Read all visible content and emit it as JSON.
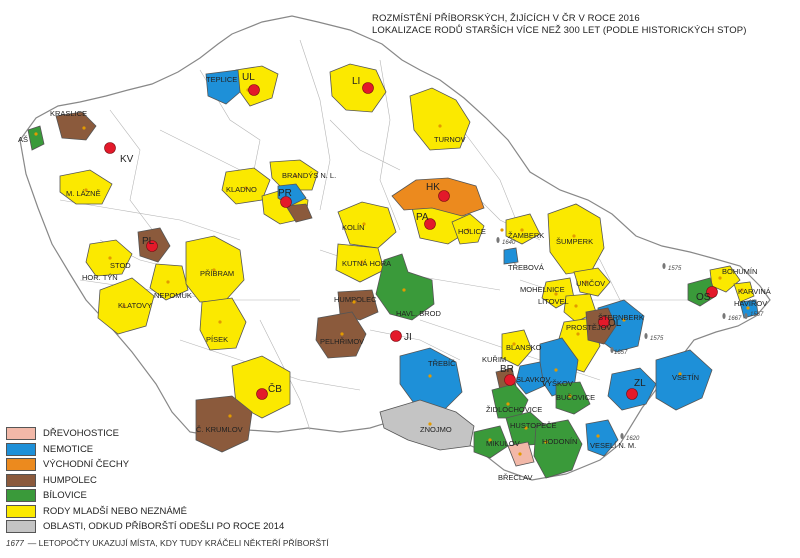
{
  "title": {
    "line1": "ROZMÍSTĚNÍ PŘÍBORSKÝCH, ŽIJÍCÍCH V ČR V ROCE 2016",
    "line2": "LOKALIZACE RODŮ STARŠÍCH VÍCE NEŽ 300 LET (PODLE HISTORICKÝCH STOP)"
  },
  "colors": {
    "drevohostice": "#f2b8a8",
    "nemotice": "#1e90d8",
    "vychodni_cechy": "#ec8a1e",
    "humpolec": "#8b5a3c",
    "bilovice": "#3a9a3a",
    "young": "#fbe900",
    "left": "#c4c4c4",
    "city": "#e3192a"
  },
  "legend": [
    {
      "label": "DŘEVOHOSTICE",
      "color_key": "drevohostice"
    },
    {
      "label": "NEMOTICE",
      "color_key": "nemotice"
    },
    {
      "label": "VÝCHODNÍ ČECHY",
      "color_key": "vychodni_cechy"
    },
    {
      "label": "HUMPOLEC",
      "color_key": "humpolec"
    },
    {
      "label": "BÍLOVICE",
      "color_key": "bilovice"
    },
    {
      "label": "RODY MLADŠÍ NEBO NEZNÁMÉ",
      "color_key": "young"
    },
    {
      "label": "OBLASTI, ODKUD PŘÍBORŠTÍ ODEŠLI PO ROCE 2014",
      "color_key": "left"
    }
  ],
  "footnote": {
    "icon": "1677",
    "text": "— LETOPOČTY UKAZUJÍ MÍSTA, KDY TUDY KRÁČELI NĚKTEŘÍ PŘÍBORŠTÍ"
  },
  "cities": [
    "UL",
    "LI",
    "KV",
    "HK",
    "PR",
    "PA",
    "PL",
    "JI",
    "ČB",
    "OL",
    "OS",
    "ZL",
    "BR"
  ],
  "districts": [
    "TEPLICE",
    "KRASLICE",
    "AŠ",
    "M. LÁZNĚ",
    "TURNOV",
    "BRANDÝS N. L.",
    "KLADNO",
    "KOLÍN",
    "KUTNÁ HORA",
    "HOLICE",
    "ŽAMBERK",
    "ŠUMPERK",
    "TŘEBOVÁ",
    "STOD",
    "HOR. TÝN",
    "NEPOMUK",
    "PŘÍBRAM",
    "KLATOVY",
    "PÍSEK",
    "HUMPOLEC",
    "HAVL. BROD",
    "PELHŘIMOV",
    "MOHELNICE",
    "UNIČOV",
    "ŠTERNBERK",
    "LITOVEL",
    "BOHUMÍN",
    "KARVINÁ",
    "HAVÍŘOV",
    "PROSTĚJOV",
    "BLANSKO",
    "KUŘIM",
    "TŘEBÍČ",
    "VYŠKOV",
    "SLAVKOV",
    "BUČOVICE",
    "VSETÍN",
    "ŽIDLOCHOVICE",
    "ZNOJMO",
    "HUSTOPEČE",
    "HODONÍN",
    "MIKULOV",
    "VESELÍ N. M.",
    "BŘECLAV",
    "Č. KRUMLOV"
  ],
  "years": [
    "1640",
    "1575",
    "1667",
    "1567",
    "1657",
    "1575",
    "1620"
  ]
}
